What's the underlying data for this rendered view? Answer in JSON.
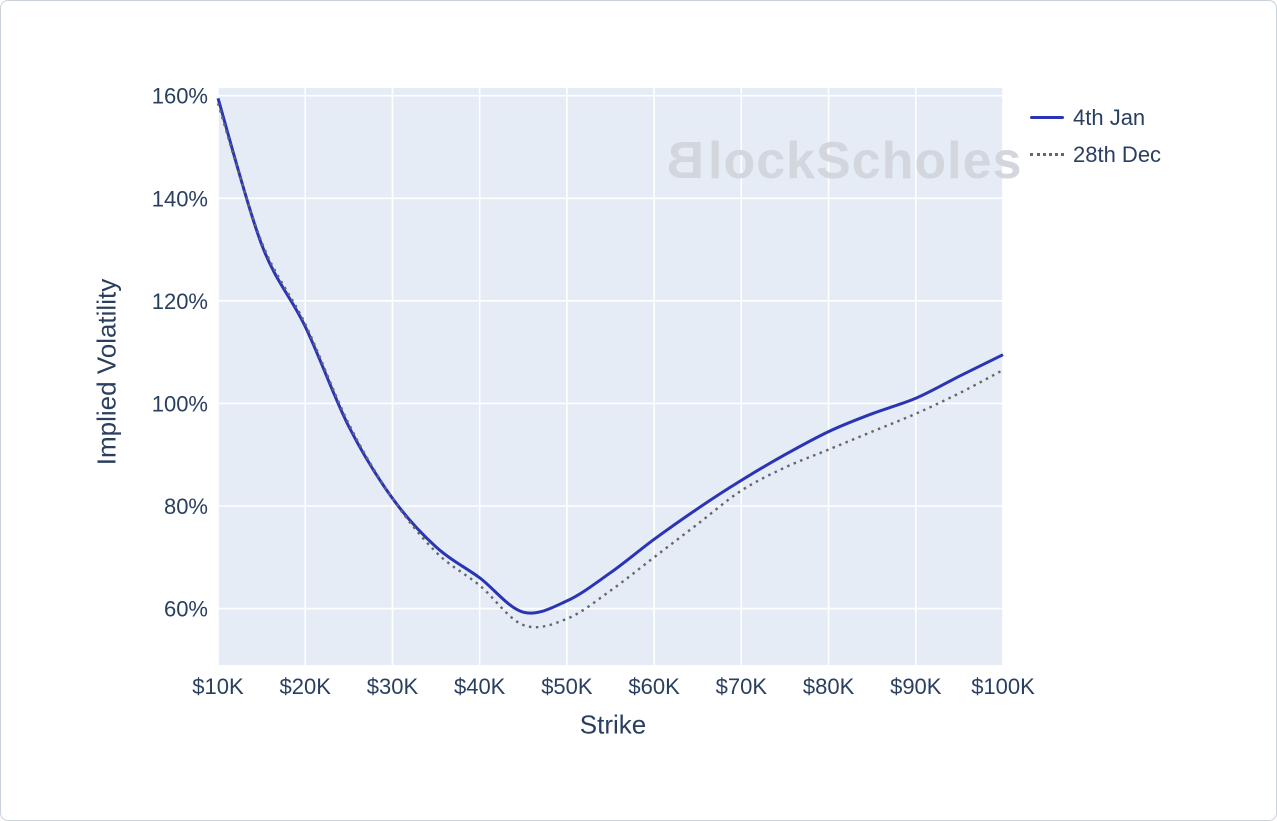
{
  "watermark": {
    "mark_glyph": "B",
    "text": "lockScholes"
  },
  "colors": {
    "text": "#2a3f5f",
    "series_blue": "#2a35b5",
    "series_gray": "#64666e",
    "plot_bg": "#e5ecf6",
    "grid": "#ffffff",
    "watermark": "#d3d7dd"
  },
  "chart_data": {
    "type": "line",
    "title": "",
    "xlabel": "Strike",
    "ylabel": "Implied Volatility",
    "grid": true,
    "legend_position": "top-right-outside",
    "x_range": [
      10,
      100
    ],
    "y_range": [
      49,
      161.5
    ],
    "x_tick_values": [
      10,
      20,
      30,
      40,
      50,
      60,
      70,
      80,
      90,
      100
    ],
    "x_ticks": [
      "$10K",
      "$20K",
      "$30K",
      "$40K",
      "$50K",
      "$60K",
      "$70K",
      "$80K",
      "$90K",
      "$100K"
    ],
    "y_tick_values": [
      60,
      80,
      100,
      120,
      140,
      160
    ],
    "y_ticks": [
      "60%",
      "80%",
      "100%",
      "120%",
      "140%",
      "160%"
    ],
    "x": [
      10,
      15,
      20,
      25,
      30,
      35,
      40,
      45,
      50,
      55,
      60,
      65,
      70,
      75,
      80,
      85,
      90,
      95,
      100
    ],
    "series": [
      {
        "name": "4th Jan",
        "style": "solid",
        "color": "#2a35b5",
        "values": [
          159.5,
          131,
          115,
          95.5,
          81.5,
          72,
          66,
          59.3,
          61.5,
          67,
          73.5,
          79.5,
          85,
          90,
          94.5,
          98,
          101,
          105.3,
          109.5
        ]
      },
      {
        "name": "28th Dec",
        "style": "dotted",
        "color": "#64666e",
        "values": [
          158.5,
          131.5,
          115.5,
          96,
          81.5,
          71,
          64.5,
          56.8,
          58,
          63.5,
          70,
          76.5,
          83,
          87.5,
          91,
          94.5,
          98,
          102,
          106.5
        ]
      }
    ]
  }
}
